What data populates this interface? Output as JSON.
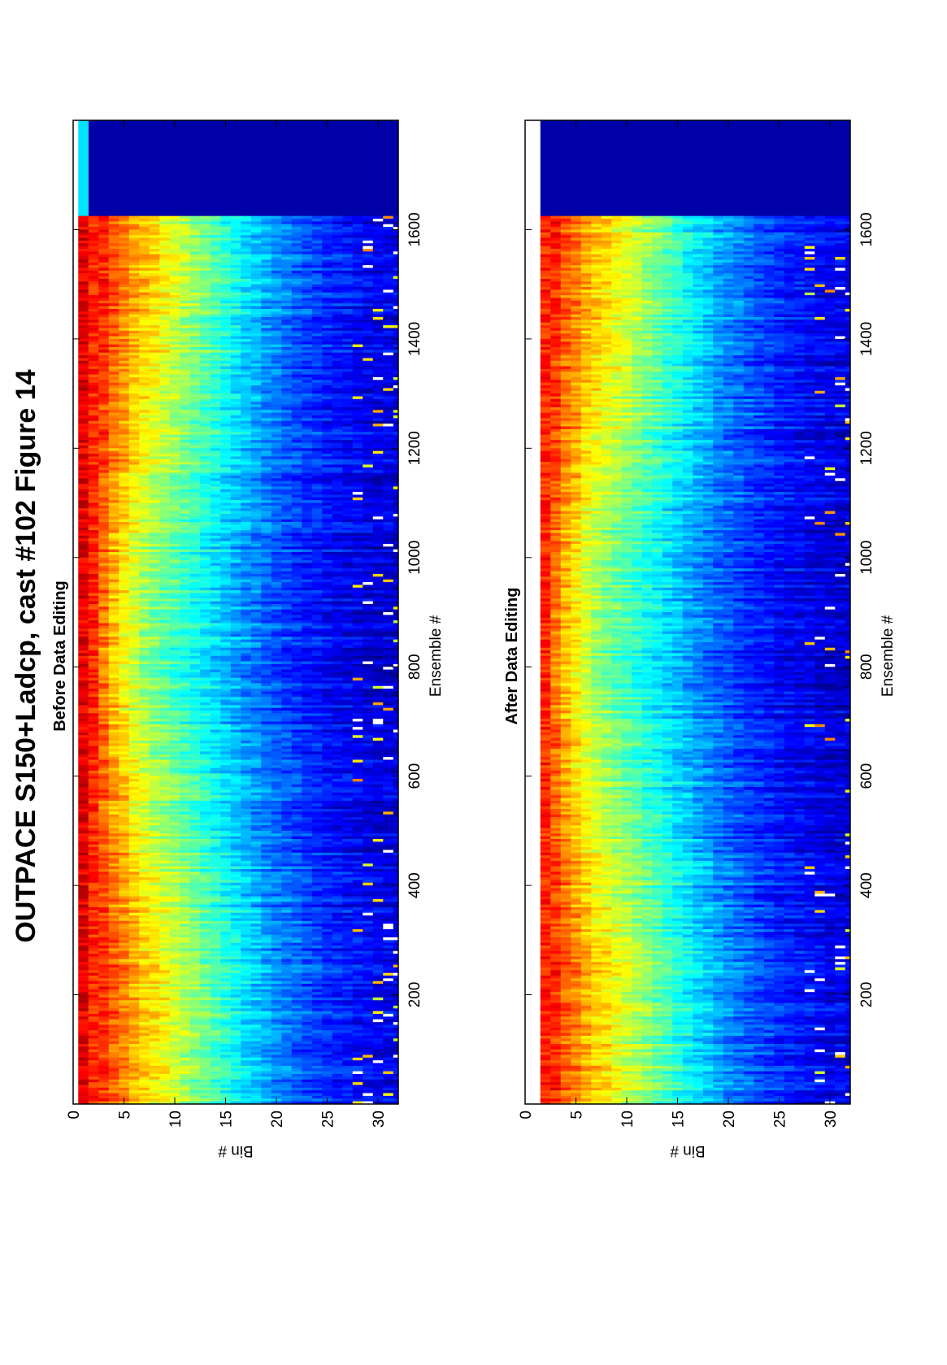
{
  "figure_title": "OUTPACE S150+Ladcp, cast #102  Figure 14",
  "chart_data": [
    {
      "type": "heatmap",
      "title": "Before Data Editing",
      "xlabel": "Ensemble #",
      "ylabel": "Bin #",
      "xlim": [
        0,
        1800
      ],
      "ylim": [
        0,
        32
      ],
      "x_ticks": [
        200,
        400,
        600,
        800,
        1000,
        1200,
        1400,
        1600
      ],
      "y_ticks": [
        0,
        5,
        10,
        15,
        20,
        25,
        30
      ],
      "colormap": "jet",
      "n_ensembles": 1625,
      "n_bins": 32,
      "bin_levels": [
        0.96,
        0.9,
        0.8,
        0.74,
        0.7,
        0.65,
        0.61,
        0.58,
        0.55,
        0.52,
        0.49,
        0.46,
        0.43,
        0.4,
        0.37,
        0.34,
        0.31,
        0.29,
        0.26,
        0.24,
        0.22,
        0.2,
        0.18,
        0.17,
        0.15,
        0.14,
        0.13,
        0.12,
        0.11,
        0.1,
        0.1,
        0.09
      ],
      "bin1_present": true,
      "after_end_fill": {
        "bin1": 0.35,
        "other_bins": 0.04
      },
      "outlier_bins": [
        28,
        29,
        30,
        31,
        32
      ]
    },
    {
      "type": "heatmap",
      "title": "After Data Editing",
      "xlabel": "Ensemble #",
      "ylabel": "Bin #",
      "xlim": [
        0,
        1800
      ],
      "ylim": [
        0,
        32
      ],
      "x_ticks": [
        200,
        400,
        600,
        800,
        1000,
        1200,
        1400,
        1600
      ],
      "y_ticks": [
        0,
        5,
        10,
        15,
        20,
        25,
        30
      ],
      "colormap": "jet",
      "n_ensembles": 1625,
      "n_bins": 32,
      "bin_levels": [
        0.96,
        0.9,
        0.8,
        0.74,
        0.7,
        0.65,
        0.61,
        0.58,
        0.55,
        0.52,
        0.49,
        0.46,
        0.43,
        0.4,
        0.37,
        0.34,
        0.31,
        0.29,
        0.26,
        0.24,
        0.22,
        0.2,
        0.18,
        0.17,
        0.15,
        0.14,
        0.13,
        0.12,
        0.11,
        0.1,
        0.1,
        0.09
      ],
      "bin1_present": false,
      "after_end_fill": {
        "bin1": null,
        "other_bins": 0.04
      },
      "outlier_bins": [
        28,
        29,
        30,
        31,
        32
      ]
    }
  ]
}
